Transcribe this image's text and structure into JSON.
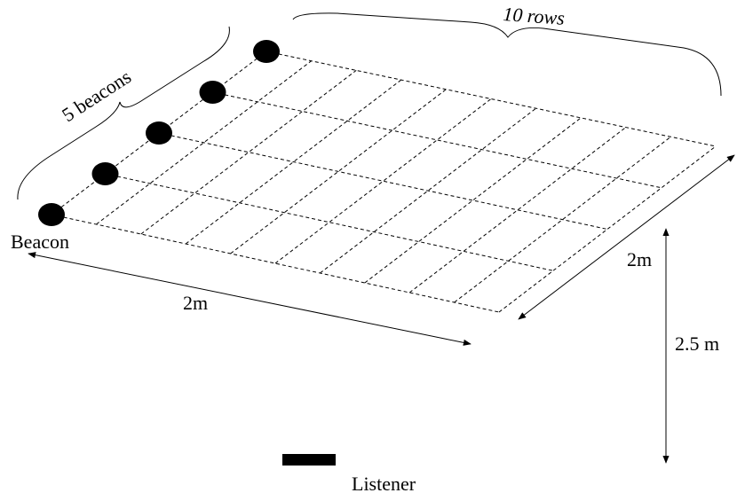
{
  "labels": {
    "beacons_count": "5 beacons",
    "rows_count": "10 rows",
    "beacon": "Beacon",
    "width_dim": "2m",
    "depth_dim": "2m",
    "height_dim": "2.5 m",
    "listener": "Listener"
  },
  "grid": {
    "beacons": 5,
    "rows": 10
  },
  "colors": {
    "ink": "#000000",
    "background": "#ffffff"
  }
}
